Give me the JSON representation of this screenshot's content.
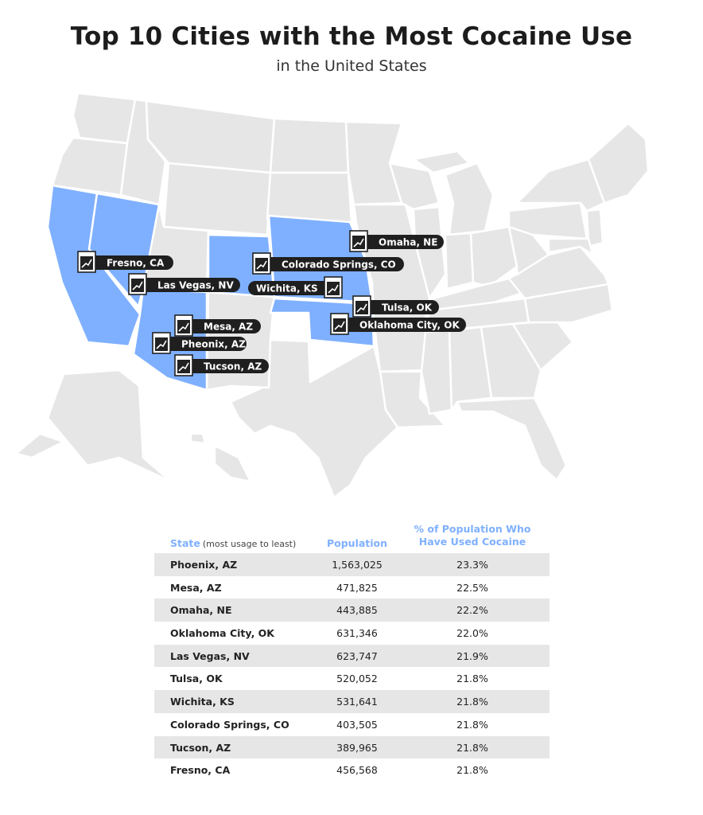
{
  "title": "Top 10 Cities with the Most Cocaine Use",
  "subtitle": "in the United States",
  "colors": {
    "highlight_state": "#7fb0ff",
    "other_state": "#e6e6e6",
    "label_bg": "#1f1f1f",
    "header_text": "#7fb0ff",
    "row_shade": "#e6e6e6"
  },
  "map": {
    "highlighted_states": [
      "California",
      "Nevada",
      "Arizona",
      "Colorado",
      "Nebraska",
      "Kansas",
      "Oklahoma"
    ],
    "marker_icon": "chart-growth-icon",
    "cities": [
      {
        "label": "Omaha, NE"
      },
      {
        "label": "Fresno, CA"
      },
      {
        "label": "Colorado Springs, CO"
      },
      {
        "label": "Las Vegas, NV"
      },
      {
        "label": "Wichita, KS"
      },
      {
        "label": "Tulsa, OK"
      },
      {
        "label": "Mesa, AZ"
      },
      {
        "label": "Oklahoma City, OK"
      },
      {
        "label": "Pheonix, AZ"
      },
      {
        "label": "Tucson, AZ"
      }
    ]
  },
  "table": {
    "headers": {
      "state": "State",
      "state_note": "(most usage to least)",
      "population": "Population",
      "percent_line1": "% of Population Who",
      "percent_line2": "Have Used Cocaine"
    },
    "rows": [
      {
        "city": "Phoenix, AZ",
        "population": "1,563,025",
        "percent": "23.3%"
      },
      {
        "city": "Mesa, AZ",
        "population": "471,825",
        "percent": "22.5%"
      },
      {
        "city": "Omaha, NE",
        "population": "443,885",
        "percent": "22.2%"
      },
      {
        "city": "Oklahoma City, OK",
        "population": "631,346",
        "percent": "22.0%"
      },
      {
        "city": "Las Vegas, NV",
        "population": "623,747",
        "percent": "21.9%"
      },
      {
        "city": "Tulsa, OK",
        "population": "520,052",
        "percent": "21.8%"
      },
      {
        "city": "Wichita, KS",
        "population": "531,641",
        "percent": "21.8%"
      },
      {
        "city": "Colorado Springs, CO",
        "population": "403,505",
        "percent": "21.8%"
      },
      {
        "city": "Tucson, AZ",
        "population": "389,965",
        "percent": "21.8%"
      },
      {
        "city": "Fresno, CA",
        "population": "456,568",
        "percent": "21.8%"
      }
    ]
  }
}
